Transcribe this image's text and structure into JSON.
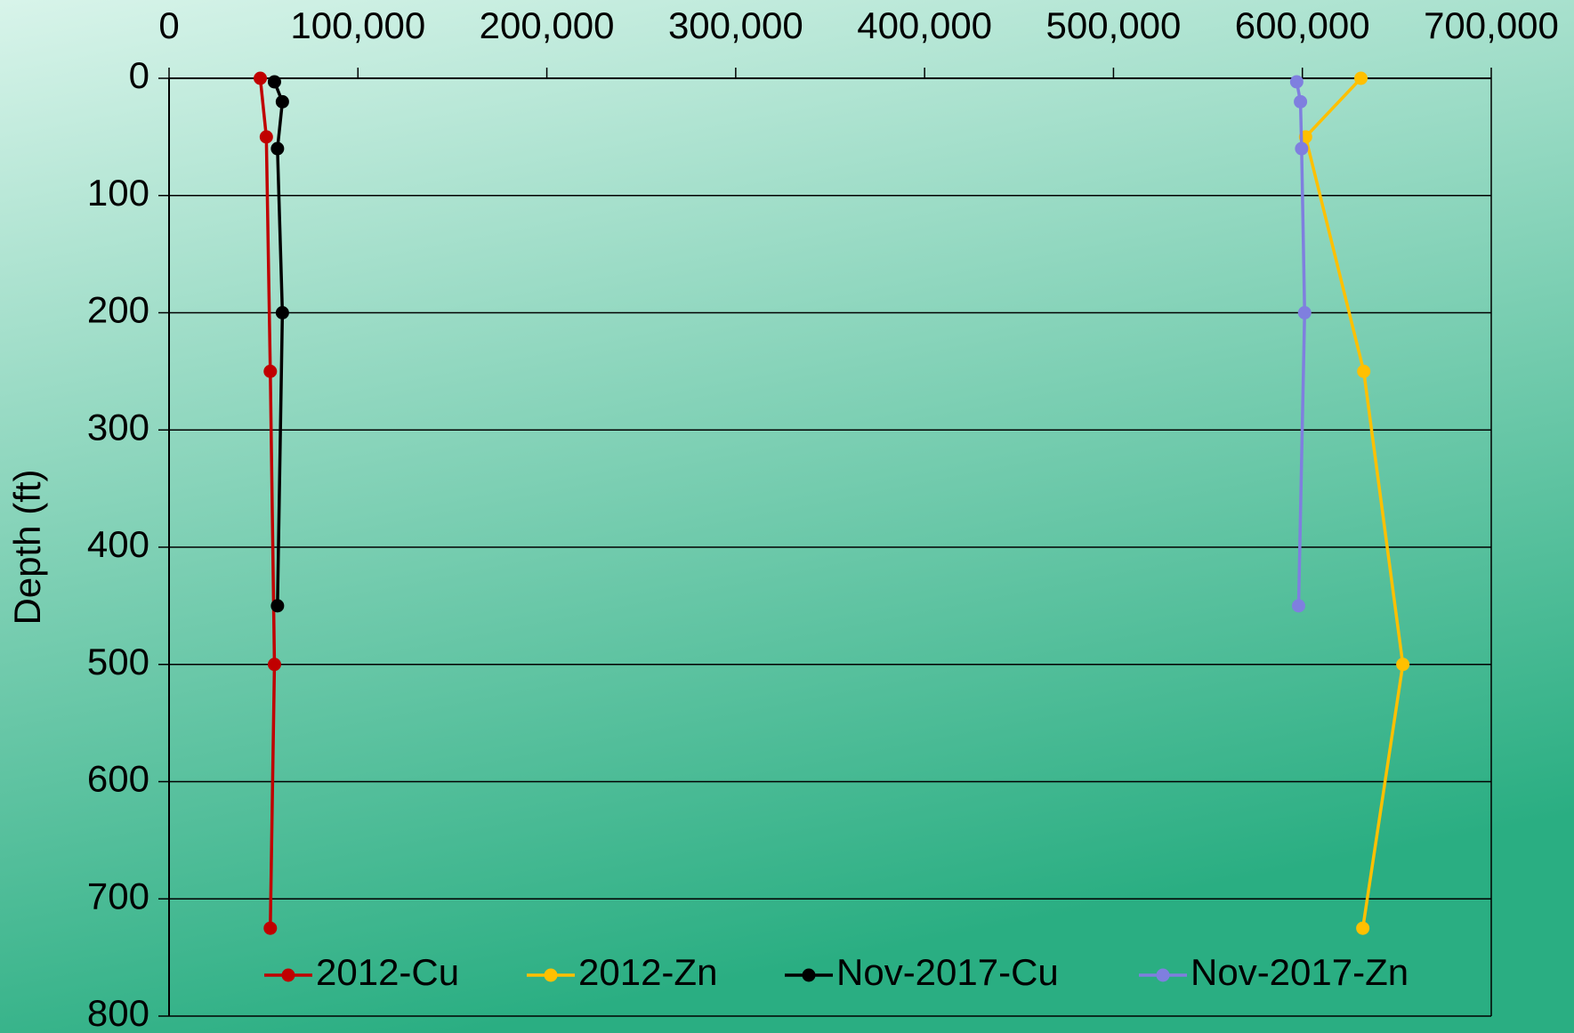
{
  "chart_data": {
    "type": "scatter",
    "y_axis_label": "Depth (ft)",
    "xlim": [
      0,
      700000
    ],
    "xticks": [
      0,
      {
        "value": 100000,
        "label": "100,000"
      },
      {
        "value": 200000,
        "label": "200,000"
      },
      {
        "value": 300000,
        "label": "300,000"
      },
      {
        "value": 400000,
        "label": "400,000"
      },
      {
        "value": 500000,
        "label": "500,000"
      },
      {
        "value": 600000,
        "label": "600,000"
      },
      {
        "value": 700000,
        "label": "700,000"
      }
    ],
    "ylim": [
      0,
      800
    ],
    "yticks": [
      0,
      100,
      200,
      300,
      400,
      500,
      600,
      700,
      800
    ],
    "y_inverted": true,
    "x_axis_position": "top",
    "grid": true,
    "legend": "bottom",
    "series": [
      {
        "name": "2012-Cu",
        "color": "#c00000",
        "x": [
          48300,
          51500,
          53600,
          55800,
          53600
        ],
        "y": [
          0,
          50,
          250,
          500,
          725
        ]
      },
      {
        "name": "2012-Zn",
        "color": "#ffc000",
        "x": [
          631000,
          601700,
          632500,
          653200,
          632000
        ],
        "y": [
          0,
          50,
          250,
          500,
          725
        ]
      },
      {
        "name": "Nov-2017-Cu",
        "color": "#000000",
        "x": [
          55800,
          60000,
          57400,
          60000,
          57400
        ],
        "y": [
          3,
          20,
          60,
          200,
          450
        ]
      },
      {
        "name": "Nov-2017-Zn",
        "color": "#7f7fdf",
        "x": [
          597000,
          599000,
          599600,
          601200,
          598000
        ],
        "y": [
          3,
          20,
          60,
          200,
          450
        ]
      }
    ]
  }
}
